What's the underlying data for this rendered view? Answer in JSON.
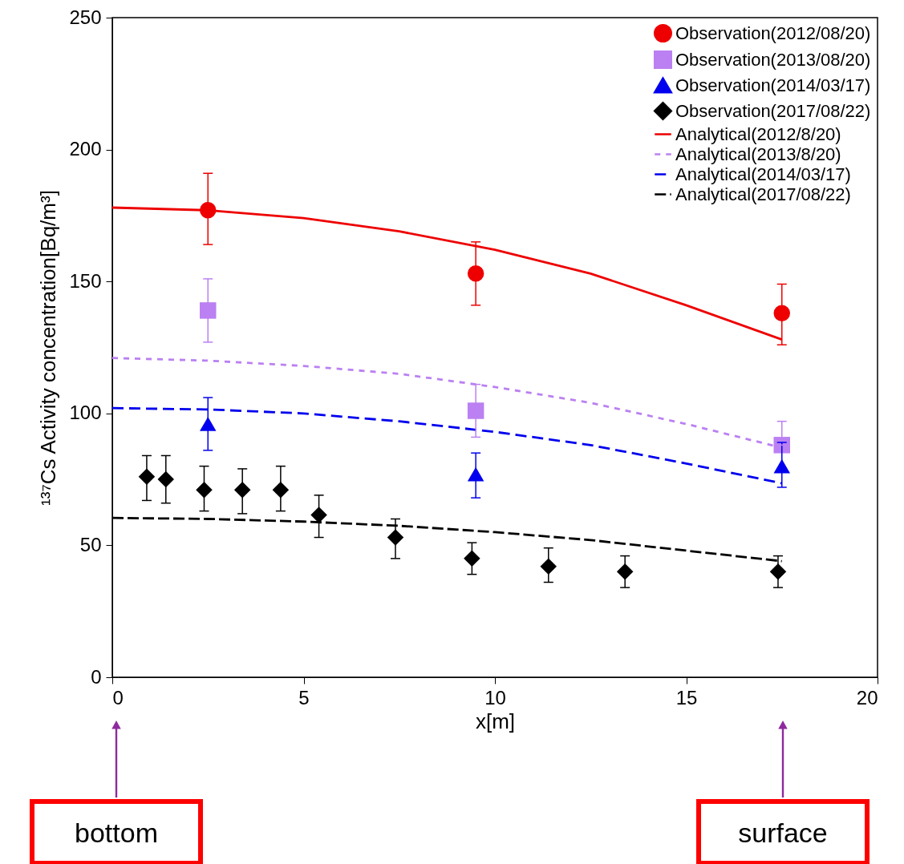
{
  "chart_data": {
    "type": "scatter",
    "xlabel": "x[m]",
    "ylabel": "¹³⁷Cs Activity concentration[Bq/m³]",
    "xlim": [
      0,
      20
    ],
    "ylim": [
      0,
      250
    ],
    "xticks": [
      0,
      5,
      10,
      15,
      20
    ],
    "yticks": [
      0,
      50,
      100,
      150,
      200,
      250
    ],
    "grid": false,
    "legend": "top right",
    "series": [
      {
        "name": "Observation(2012/08/20)",
        "color": "#ee0000",
        "marker": "circle",
        "x": [
          2.5,
          9.5,
          17.5
        ],
        "values": [
          177,
          153,
          138
        ],
        "errors": [
          [
            164,
            191
          ],
          [
            141,
            165
          ],
          [
            126,
            149
          ]
        ]
      },
      {
        "name": "Observation(2013/08/20)",
        "color": "#bb80f2",
        "marker": "square",
        "x": [
          2.5,
          9.5,
          17.5
        ],
        "values": [
          139,
          101,
          88
        ],
        "errors": [
          [
            127,
            151
          ],
          [
            91,
            111
          ],
          [
            88,
            97
          ]
        ]
      },
      {
        "name": "Observation(2014/03/17)",
        "color": "#0000ee",
        "marker": "triangle",
        "x": [
          2.5,
          9.5,
          17.5
        ],
        "values": [
          96,
          77,
          80
        ],
        "errors": [
          [
            86,
            106
          ],
          [
            68,
            85
          ],
          [
            72,
            89
          ]
        ]
      },
      {
        "name": "Observation(2017/08/22)",
        "color": "#000000",
        "marker": "diamond",
        "x": [
          0.9,
          1.4,
          2.4,
          3.4,
          4.4,
          5.4,
          7.4,
          9.4,
          11.4,
          13.4,
          17.4
        ],
        "values": [
          76,
          75,
          71,
          71,
          71,
          61.5,
          53,
          45,
          42,
          40,
          40
        ],
        "errors": [
          [
            67,
            84
          ],
          [
            66,
            84
          ],
          [
            63,
            80
          ],
          [
            62,
            79
          ],
          [
            63,
            80
          ],
          [
            53,
            69
          ],
          [
            45,
            60
          ],
          [
            39,
            51
          ],
          [
            36,
            49
          ],
          [
            34,
            46
          ],
          [
            34,
            46
          ]
        ]
      },
      {
        "name": "Analytical(2012/8/20)",
        "type": "line",
        "color": "#ee0000",
        "line_style": "solid",
        "x": [
          0,
          2.5,
          5,
          7.5,
          10,
          12.5,
          15,
          17.5
        ],
        "values": [
          178,
          177,
          174,
          169,
          162,
          153,
          141,
          128
        ]
      },
      {
        "name": "Analytical(2013/8/20)",
        "type": "line",
        "color": "#bb80f2",
        "line_style": "dashed",
        "x": [
          0,
          2.5,
          5,
          7.5,
          10,
          12.5,
          15,
          17.5
        ],
        "values": [
          121,
          120,
          118,
          115,
          110,
          104,
          96,
          87
        ]
      },
      {
        "name": "Analytical(2014/03/17)",
        "type": "line",
        "color": "#0000ee",
        "line_style": "dashed",
        "x": [
          0,
          2.5,
          5,
          7.5,
          10,
          12.5,
          15,
          17.5
        ],
        "values": [
          102,
          101.5,
          100,
          97,
          93,
          88,
          81,
          73.5
        ]
      },
      {
        "name": "Analytical(2017/08/22)",
        "type": "line",
        "color": "#000000",
        "line_style": "dashed",
        "x": [
          0,
          2.5,
          5,
          7.5,
          10,
          12.5,
          15,
          17.5
        ],
        "values": [
          60.4,
          60,
          59,
          57.4,
          55,
          52,
          48,
          44
        ]
      }
    ],
    "annotations": [
      "bottom",
      "surface"
    ]
  }
}
